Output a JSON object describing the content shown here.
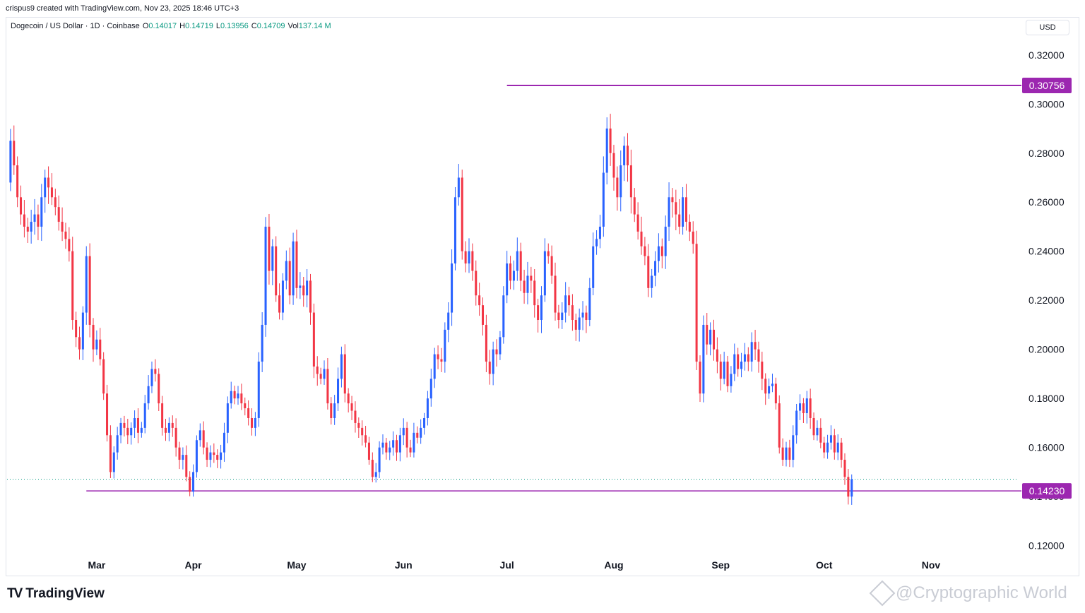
{
  "header": {
    "author_line": "crispus9 created with TradingView.com, Nov 23, 2025 18:46 UTC+3",
    "symbol": "Dogecoin / US Dollar · 1D · Coinbase",
    "ohlc": [
      {
        "k": "O",
        "v": "0.14017"
      },
      {
        "k": "H",
        "v": "0.14719"
      },
      {
        "k": "L",
        "v": "0.13956"
      },
      {
        "k": "C",
        "v": "0.14709"
      },
      {
        "k": "Vol",
        "v": "137.14 M"
      }
    ],
    "currency": "USD"
  },
  "brand": {
    "logo": "TV",
    "name": "TradingView"
  },
  "watermark": "@Cryptographic World",
  "colors": {
    "up": "#2962ff",
    "down": "#f23645",
    "level": "#9c27b0",
    "current": "#089981"
  },
  "chart_data": {
    "type": "candlestick",
    "ylim": [
      0.115,
      0.328
    ],
    "yticks": [
      "0.32000",
      "0.30000",
      "0.28000",
      "0.26000",
      "0.24000",
      "0.22000",
      "0.20000",
      "0.18000",
      "0.16000",
      "0.14000",
      "0.12000"
    ],
    "ytick_values": [
      0.32,
      0.3,
      0.28,
      0.26,
      0.24,
      0.22,
      0.2,
      0.18,
      0.16,
      0.14,
      0.12
    ],
    "xticks": [
      {
        "label": "Mar",
        "day": 1
      },
      {
        "label": "Apr",
        "day": 29
      },
      {
        "label": "May",
        "day": 59
      },
      {
        "label": "Jun",
        "day": 90
      },
      {
        "label": "Jul",
        "day": 120
      },
      {
        "label": "Aug",
        "day": 151
      },
      {
        "label": "Sep",
        "day": 182
      },
      {
        "label": "Oct",
        "day": 212
      },
      {
        "label": "Nov",
        "day": 243
      }
    ],
    "day_range": [
      -25,
      268
    ],
    "levels": [
      {
        "label": "0.30756",
        "value": 0.30756,
        "from_day": 120
      },
      {
        "label": "0.14230",
        "value": 0.1423,
        "from_day": -2
      }
    ],
    "current_price": 0.14709,
    "anchors": [
      [
        -25,
        0.268
      ],
      [
        -24,
        0.285
      ],
      [
        -23,
        0.275
      ],
      [
        -22,
        0.262
      ],
      [
        -21,
        0.255
      ],
      [
        -20,
        0.25
      ],
      [
        -19,
        0.248
      ],
      [
        -18,
        0.252
      ],
      [
        -17,
        0.255
      ],
      [
        -16,
        0.25
      ],
      [
        -15,
        0.262
      ],
      [
        -14,
        0.27
      ],
      [
        -13,
        0.266
      ],
      [
        -12,
        0.262
      ],
      [
        -11,
        0.258
      ],
      [
        -10,
        0.252
      ],
      [
        -9,
        0.248
      ],
      [
        -8,
        0.245
      ],
      [
        -7,
        0.24
      ],
      [
        -6,
        0.212
      ],
      [
        -5,
        0.205
      ],
      [
        -4,
        0.2
      ],
      [
        -3,
        0.215
      ],
      [
        -2,
        0.238
      ],
      [
        -1,
        0.21
      ],
      [
        0,
        0.2
      ],
      [
        1,
        0.204
      ],
      [
        2,
        0.196
      ],
      [
        3,
        0.182
      ],
      [
        4,
        0.165
      ],
      [
        5,
        0.15
      ],
      [
        6,
        0.158
      ],
      [
        7,
        0.165
      ],
      [
        8,
        0.17
      ],
      [
        9,
        0.168
      ],
      [
        10,
        0.165
      ],
      [
        11,
        0.168
      ],
      [
        12,
        0.172
      ],
      [
        13,
        0.166
      ],
      [
        14,
        0.168
      ],
      [
        15,
        0.178
      ],
      [
        16,
        0.185
      ],
      [
        17,
        0.192
      ],
      [
        18,
        0.19
      ],
      [
        19,
        0.178
      ],
      [
        20,
        0.168
      ],
      [
        21,
        0.166
      ],
      [
        22,
        0.17
      ],
      [
        23,
        0.168
      ],
      [
        24,
        0.16
      ],
      [
        25,
        0.155
      ],
      [
        26,
        0.157
      ],
      [
        27,
        0.148
      ],
      [
        28,
        0.142
      ],
      [
        29,
        0.15
      ],
      [
        30,
        0.163
      ],
      [
        31,
        0.167
      ],
      [
        32,
        0.16
      ],
      [
        33,
        0.155
      ],
      [
        34,
        0.158
      ],
      [
        35,
        0.157
      ],
      [
        36,
        0.155
      ],
      [
        37,
        0.158
      ],
      [
        38,
        0.166
      ],
      [
        39,
        0.178
      ],
      [
        40,
        0.183
      ],
      [
        41,
        0.18
      ],
      [
        42,
        0.182
      ],
      [
        43,
        0.178
      ],
      [
        44,
        0.176
      ],
      [
        45,
        0.172
      ],
      [
        46,
        0.168
      ],
      [
        47,
        0.172
      ],
      [
        48,
        0.195
      ],
      [
        49,
        0.21
      ],
      [
        50,
        0.25
      ],
      [
        51,
        0.232
      ],
      [
        52,
        0.242
      ],
      [
        53,
        0.222
      ],
      [
        54,
        0.215
      ],
      [
        55,
        0.228
      ],
      [
        56,
        0.236
      ],
      [
        57,
        0.222
      ],
      [
        58,
        0.244
      ],
      [
        59,
        0.225
      ],
      [
        60,
        0.226
      ],
      [
        61,
        0.222
      ],
      [
        62,
        0.228
      ],
      [
        63,
        0.215
      ],
      [
        64,
        0.193
      ],
      [
        65,
        0.19
      ],
      [
        66,
        0.188
      ],
      [
        67,
        0.192
      ],
      [
        68,
        0.178
      ],
      [
        69,
        0.172
      ],
      [
        70,
        0.178
      ],
      [
        71,
        0.188
      ],
      [
        72,
        0.198
      ],
      [
        73,
        0.182
      ],
      [
        74,
        0.178
      ],
      [
        75,
        0.175
      ],
      [
        76,
        0.17
      ],
      [
        77,
        0.168
      ],
      [
        78,
        0.165
      ],
      [
        79,
        0.162
      ],
      [
        80,
        0.155
      ],
      [
        81,
        0.148
      ],
      [
        82,
        0.15
      ],
      [
        83,
        0.16
      ],
      [
        84,
        0.162
      ],
      [
        85,
        0.158
      ],
      [
        86,
        0.16
      ],
      [
        87,
        0.163
      ],
      [
        88,
        0.158
      ],
      [
        89,
        0.165
      ],
      [
        90,
        0.168
      ],
      [
        91,
        0.16
      ],
      [
        92,
        0.158
      ],
      [
        93,
        0.166
      ],
      [
        94,
        0.164
      ],
      [
        95,
        0.168
      ],
      [
        96,
        0.172
      ],
      [
        97,
        0.18
      ],
      [
        98,
        0.188
      ],
      [
        99,
        0.198
      ],
      [
        100,
        0.196
      ],
      [
        101,
        0.195
      ],
      [
        102,
        0.208
      ],
      [
        103,
        0.215
      ],
      [
        104,
        0.235
      ],
      [
        105,
        0.262
      ],
      [
        106,
        0.27
      ],
      [
        107,
        0.24
      ],
      [
        108,
        0.235
      ],
      [
        109,
        0.24
      ],
      [
        110,
        0.232
      ],
      [
        111,
        0.222
      ],
      [
        112,
        0.218
      ],
      [
        113,
        0.21
      ],
      [
        114,
        0.195
      ],
      [
        115,
        0.19
      ],
      [
        116,
        0.2
      ],
      [
        117,
        0.198
      ],
      [
        118,
        0.205
      ],
      [
        119,
        0.222
      ],
      [
        120,
        0.235
      ],
      [
        121,
        0.228
      ],
      [
        122,
        0.232
      ],
      [
        123,
        0.24
      ],
      [
        124,
        0.228
      ],
      [
        125,
        0.223
      ],
      [
        126,
        0.23
      ],
      [
        127,
        0.228
      ],
      [
        128,
        0.218
      ],
      [
        129,
        0.212
      ],
      [
        130,
        0.222
      ],
      [
        131,
        0.24
      ],
      [
        132,
        0.238
      ],
      [
        133,
        0.23
      ],
      [
        134,
        0.215
      ],
      [
        135,
        0.212
      ],
      [
        136,
        0.215
      ],
      [
        137,
        0.222
      ],
      [
        138,
        0.218
      ],
      [
        139,
        0.212
      ],
      [
        140,
        0.208
      ],
      [
        141,
        0.213
      ],
      [
        142,
        0.215
      ],
      [
        143,
        0.212
      ],
      [
        144,
        0.225
      ],
      [
        145,
        0.242
      ],
      [
        146,
        0.245
      ],
      [
        147,
        0.25
      ],
      [
        148,
        0.272
      ],
      [
        149,
        0.29
      ],
      [
        150,
        0.28
      ],
      [
        151,
        0.27
      ],
      [
        152,
        0.262
      ],
      [
        153,
        0.275
      ],
      [
        154,
        0.283
      ],
      [
        155,
        0.275
      ],
      [
        156,
        0.262
      ],
      [
        157,
        0.255
      ],
      [
        158,
        0.248
      ],
      [
        159,
        0.242
      ],
      [
        160,
        0.238
      ],
      [
        161,
        0.225
      ],
      [
        162,
        0.23
      ],
      [
        163,
        0.236
      ],
      [
        164,
        0.242
      ],
      [
        165,
        0.238
      ],
      [
        166,
        0.25
      ],
      [
        167,
        0.262
      ],
      [
        168,
        0.26
      ],
      [
        169,
        0.255
      ],
      [
        170,
        0.25
      ],
      [
        171,
        0.262
      ],
      [
        172,
        0.252
      ],
      [
        173,
        0.248
      ],
      [
        174,
        0.243
      ],
      [
        175,
        0.195
      ],
      [
        176,
        0.182
      ],
      [
        177,
        0.21
      ],
      [
        178,
        0.202
      ],
      [
        179,
        0.208
      ],
      [
        180,
        0.2
      ],
      [
        181,
        0.195
      ],
      [
        182,
        0.188
      ],
      [
        183,
        0.195
      ],
      [
        184,
        0.185
      ],
      [
        185,
        0.19
      ],
      [
        186,
        0.198
      ],
      [
        187,
        0.192
      ],
      [
        188,
        0.195
      ],
      [
        189,
        0.198
      ],
      [
        190,
        0.195
      ],
      [
        191,
        0.203
      ],
      [
        192,
        0.2
      ],
      [
        193,
        0.195
      ],
      [
        194,
        0.188
      ],
      [
        195,
        0.182
      ],
      [
        196,
        0.185
      ],
      [
        197,
        0.186
      ],
      [
        198,
        0.178
      ],
      [
        199,
        0.16
      ],
      [
        200,
        0.155
      ],
      [
        201,
        0.16
      ],
      [
        202,
        0.155
      ],
      [
        203,
        0.165
      ],
      [
        204,
        0.175
      ],
      [
        205,
        0.178
      ],
      [
        206,
        0.174
      ],
      [
        207,
        0.18
      ],
      [
        208,
        0.172
      ],
      [
        209,
        0.165
      ],
      [
        210,
        0.168
      ],
      [
        211,
        0.162
      ],
      [
        212,
        0.158
      ],
      [
        213,
        0.162
      ],
      [
        214,
        0.165
      ],
      [
        215,
        0.158
      ],
      [
        216,
        0.162
      ],
      [
        217,
        0.155
      ],
      [
        218,
        0.148
      ],
      [
        219,
        0.14
      ],
      [
        220,
        0.14709
      ]
    ]
  }
}
